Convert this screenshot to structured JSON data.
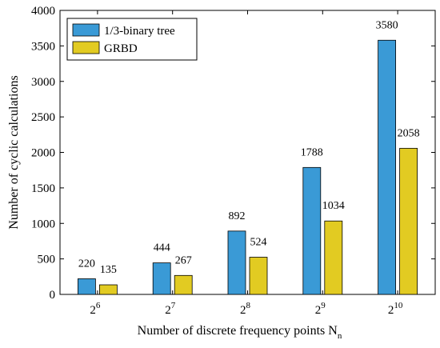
{
  "chart_data": {
    "type": "bar",
    "categories": [
      {
        "base": "2",
        "exp": "6"
      },
      {
        "base": "2",
        "exp": "7"
      },
      {
        "base": "2",
        "exp": "8"
      },
      {
        "base": "2",
        "exp": "9"
      },
      {
        "base": "2",
        "exp": "10"
      }
    ],
    "series": [
      {
        "name": "1/3-binary tree",
        "values": [
          220,
          444,
          892,
          1788,
          3580
        ],
        "color": "#3a9ad6"
      },
      {
        "name": "GRBD",
        "values": [
          135,
          267,
          524,
          1034,
          2058
        ],
        "color": "#e2cb22"
      }
    ],
    "title": "",
    "xlabel": "Number of discrete frequency points N",
    "xlabel_subscript": "n",
    "ylabel": "Number of cyclic calculations",
    "ylim": [
      0,
      4000
    ],
    "yticks": [
      0,
      500,
      1000,
      1500,
      2000,
      2500,
      3000,
      3500,
      4000
    ],
    "grid": false,
    "legend_position": "top-left"
  }
}
